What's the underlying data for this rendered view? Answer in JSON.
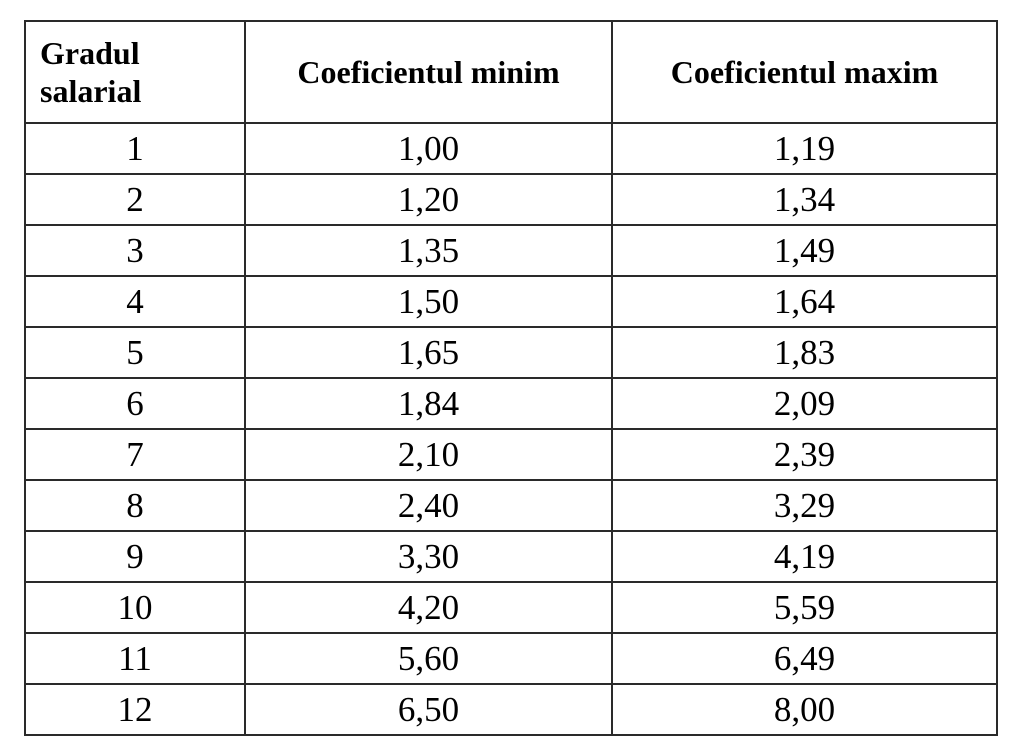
{
  "table": {
    "header": [
      "Gradul salarial",
      "Coeficientul minim",
      "Coeficientul maxim"
    ],
    "rows": [
      [
        "1",
        "1,00",
        "1,19"
      ],
      [
        "2",
        "1,20",
        "1,34"
      ],
      [
        "3",
        "1,35",
        "1,49"
      ],
      [
        "4",
        "1,50",
        "1,64"
      ],
      [
        "5",
        "1,65",
        "1,83"
      ],
      [
        "6",
        "1,84",
        "2,09"
      ],
      [
        "7",
        "2,10",
        "2,39"
      ],
      [
        "8",
        "2,40",
        "3,29"
      ],
      [
        "9",
        "3,30",
        "4,19"
      ],
      [
        "10",
        "4,20",
        "5,59"
      ],
      [
        "11",
        "5,60",
        "6,49"
      ],
      [
        "12",
        "6,50",
        "8,00"
      ]
    ]
  }
}
